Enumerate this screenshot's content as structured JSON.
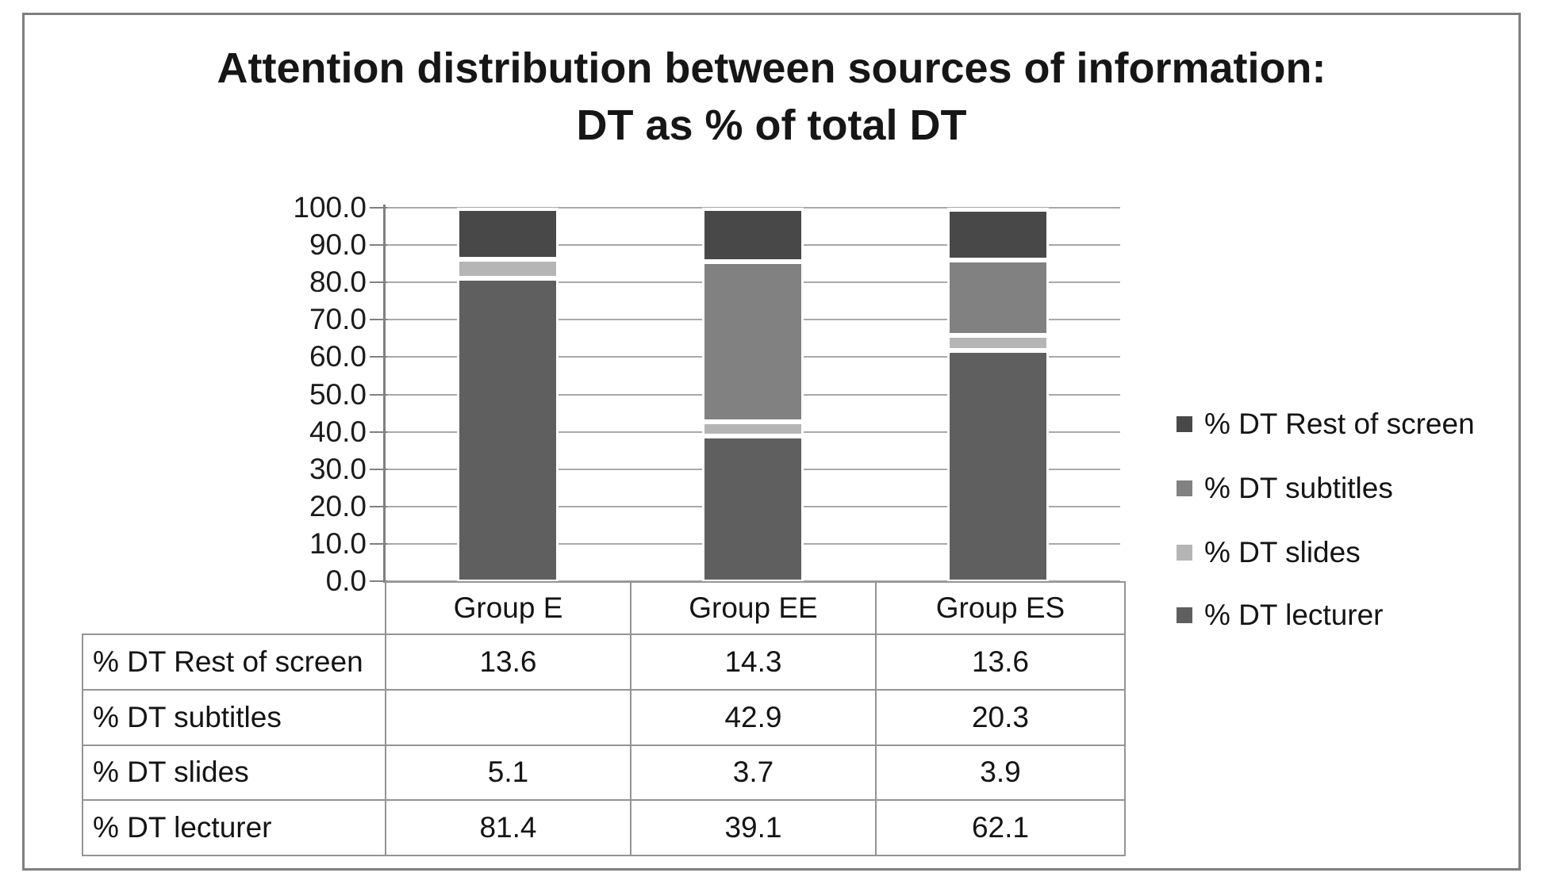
{
  "title": {
    "line1": "Attention distribution between sources of information:",
    "line2": "DT as % of total DT"
  },
  "chart_data": {
    "type": "bar",
    "stacked": true,
    "title": "Attention distribution between sources of information: DT as % of total DT",
    "categories": [
      "Group E",
      "Group EE",
      "Group ES"
    ],
    "series": [
      {
        "name": "% DT lecturer",
        "color": "#5f5f5f",
        "values": [
          81.4,
          39.1,
          62.1
        ]
      },
      {
        "name": "% DT slides",
        "color": "#b5b5b5",
        "values": [
          5.1,
          3.7,
          3.9
        ]
      },
      {
        "name": "% DT subtitles",
        "color": "#818181",
        "values": [
          null,
          42.9,
          20.3
        ]
      },
      {
        "name": "% DT Rest of screen",
        "color": "#484848",
        "values": [
          13.6,
          14.3,
          13.6
        ]
      }
    ],
    "ylim": [
      0,
      100
    ],
    "ytick_step": 10,
    "ytick_labels": [
      "100.0",
      "90.0",
      "80.0",
      "70.0",
      "60.0",
      "50.0",
      "40.0",
      "30.0",
      "20.0",
      "10.0",
      "0.0"
    ],
    "grid": true,
    "legend_position": "right",
    "legend_order": [
      "% DT Rest of screen",
      "% DT subtitles",
      "% DT slides",
      "% DT lecturer"
    ]
  },
  "table": {
    "column_headers": [
      "Group E",
      "Group EE",
      "Group ES"
    ],
    "rows": [
      {
        "label": "% DT Rest of screen",
        "values": [
          "13.6",
          "14.3",
          "13.6"
        ]
      },
      {
        "label": "% DT subtitles",
        "values": [
          "",
          "42.9",
          "20.3"
        ]
      },
      {
        "label": "% DT slides",
        "values": [
          "5.1",
          "3.7",
          "3.9"
        ]
      },
      {
        "label": "% DT lecturer",
        "values": [
          "81.4",
          "39.1",
          "62.1"
        ]
      }
    ]
  },
  "colors": {
    "frame_border": "#7f7f7f",
    "gridline": "#a9a9a9",
    "axis": "#808080",
    "table_border": "#949494",
    "text": "#1b1b1b"
  }
}
